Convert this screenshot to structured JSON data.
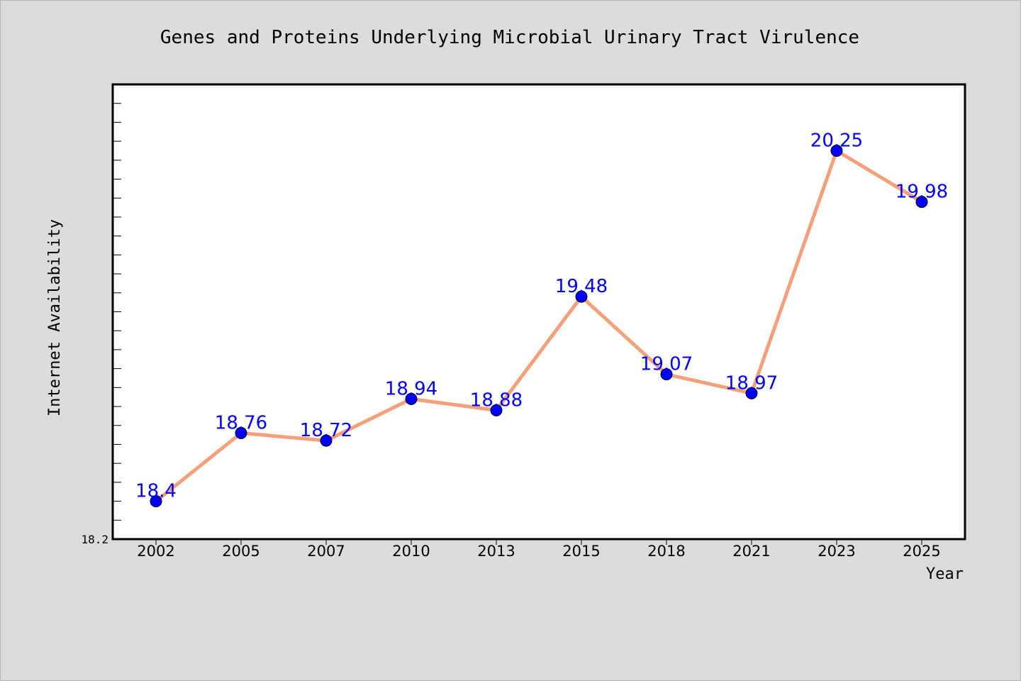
{
  "chart_data": {
    "type": "line",
    "title": "Genes and Proteins Underlying Microbial Urinary Tract Virulence",
    "xlabel": "Year",
    "ylabel": "Internet Availability",
    "categories": [
      "2002",
      "2005",
      "2007",
      "2010",
      "2013",
      "2015",
      "2018",
      "2021",
      "2023",
      "2025"
    ],
    "values": [
      18.4,
      18.76,
      18.72,
      18.94,
      18.88,
      19.48,
      19.07,
      18.97,
      20.25,
      19.98
    ],
    "value_labels": [
      "18.4",
      "18.76",
      "18.72",
      "18.94",
      "18.88",
      "19.48",
      "19.07",
      "18.97",
      "20.25",
      "19.98"
    ],
    "ylim": [
      18.2,
      20.6
    ],
    "ytick_minor_step": 0.1,
    "ymin_label": "18.2",
    "grid": false,
    "line_color": "#f4a07a",
    "marker_color": "#0000ff",
    "label_color": "#0000ff"
  }
}
